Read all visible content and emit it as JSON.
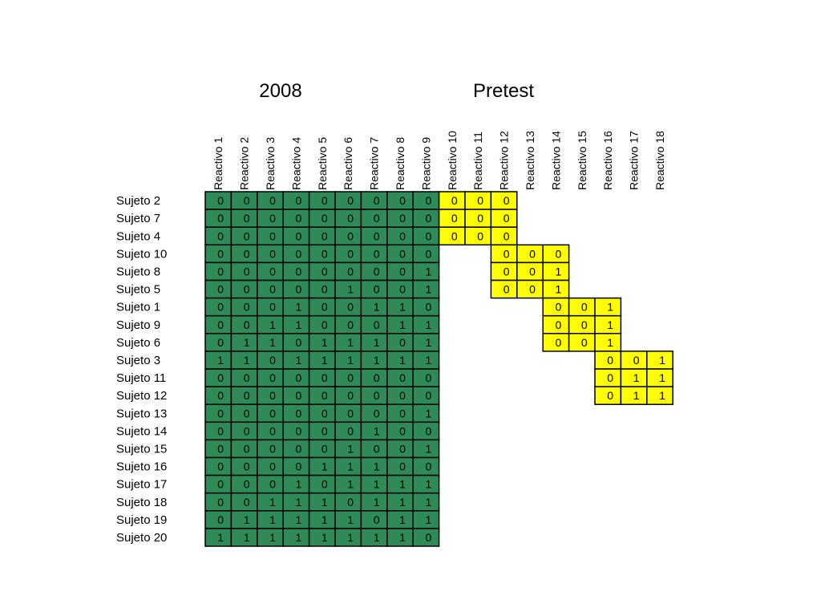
{
  "chart_data": {
    "type": "table",
    "titles": [
      "2008",
      "Pretest"
    ],
    "columns": [
      "Reactivo 1",
      "Reactivo 2",
      "Reactivo 3",
      "Reactivo 4",
      "Reactivo 5",
      "Reactivo 6",
      "Reactivo 7",
      "Reactivo 8",
      "Reactivo 9",
      "Reactivo 10",
      "Reactivo 11",
      "Reactivo 12",
      "Reactivo 13",
      "Reactivo 14",
      "Reactivo 15",
      "Reactivo 16",
      "Reactivo 17",
      "Reactivo 18"
    ],
    "colors": {
      "group_2008": "#2e8b57",
      "group_pretest": "#ffff00"
    },
    "rows": [
      {
        "subject": "Sujeto 2",
        "base": [
          0,
          0,
          0,
          0,
          0,
          0,
          0,
          0,
          0
        ],
        "pretest_items": [
          10,
          11,
          12
        ],
        "pretest": [
          0,
          0,
          0
        ]
      },
      {
        "subject": "Sujeto 7",
        "base": [
          0,
          0,
          0,
          0,
          0,
          0,
          0,
          0,
          0
        ],
        "pretest_items": [
          10,
          11,
          12
        ],
        "pretest": [
          0,
          0,
          0
        ]
      },
      {
        "subject": "Sujeto 4",
        "base": [
          0,
          0,
          0,
          0,
          0,
          0,
          0,
          0,
          0
        ],
        "pretest_items": [
          10,
          11,
          12
        ],
        "pretest": [
          0,
          0,
          0
        ]
      },
      {
        "subject": "Sujeto 10",
        "base": [
          0,
          0,
          0,
          0,
          0,
          0,
          0,
          0,
          0
        ],
        "pretest_items": [
          12,
          13,
          14
        ],
        "pretest": [
          0,
          0,
          0
        ]
      },
      {
        "subject": "Sujeto 8",
        "base": [
          0,
          0,
          0,
          0,
          0,
          0,
          0,
          0,
          1
        ],
        "pretest_items": [
          12,
          13,
          14
        ],
        "pretest": [
          0,
          0,
          1
        ]
      },
      {
        "subject": "Sujeto 5",
        "base": [
          0,
          0,
          0,
          0,
          0,
          1,
          0,
          0,
          1
        ],
        "pretest_items": [
          12,
          13,
          14
        ],
        "pretest": [
          0,
          0,
          1
        ]
      },
      {
        "subject": "Sujeto 1",
        "base": [
          0,
          0,
          0,
          1,
          0,
          0,
          1,
          1,
          0
        ],
        "pretest_items": [
          14,
          15,
          16
        ],
        "pretest": [
          0,
          0,
          1
        ]
      },
      {
        "subject": "Sujeto 9",
        "base": [
          0,
          0,
          1,
          1,
          0,
          0,
          0,
          1,
          1
        ],
        "pretest_items": [
          14,
          15,
          16
        ],
        "pretest": [
          0,
          0,
          1
        ]
      },
      {
        "subject": "Sujeto 6",
        "base": [
          0,
          1,
          1,
          0,
          1,
          1,
          1,
          0,
          1
        ],
        "pretest_items": [
          14,
          15,
          16
        ],
        "pretest": [
          0,
          0,
          1
        ]
      },
      {
        "subject": "Sujeto 3",
        "base": [
          1,
          1,
          0,
          1,
          1,
          1,
          1,
          1,
          1
        ],
        "pretest_items": [
          16,
          17,
          18
        ],
        "pretest": [
          0,
          0,
          1
        ]
      },
      {
        "subject": "Sujeto 11",
        "base": [
          0,
          0,
          0,
          0,
          0,
          0,
          0,
          0,
          0
        ],
        "pretest_items": [
          16,
          17,
          18
        ],
        "pretest": [
          0,
          1,
          1
        ]
      },
      {
        "subject": "Sujeto 12",
        "base": [
          0,
          0,
          0,
          0,
          0,
          0,
          0,
          0,
          0
        ],
        "pretest_items": [
          16,
          17,
          18
        ],
        "pretest": [
          0,
          1,
          1
        ]
      },
      {
        "subject": "Sujeto 13",
        "base": [
          0,
          0,
          0,
          0,
          0,
          0,
          0,
          0,
          1
        ],
        "pretest_items": [],
        "pretest": []
      },
      {
        "subject": "Sujeto 14",
        "base": [
          0,
          0,
          0,
          0,
          0,
          0,
          1,
          0,
          0
        ],
        "pretest_items": [],
        "pretest": []
      },
      {
        "subject": "Sujeto 15",
        "base": [
          0,
          0,
          0,
          0,
          0,
          1,
          0,
          0,
          1
        ],
        "pretest_items": [],
        "pretest": []
      },
      {
        "subject": "Sujeto 16",
        "base": [
          0,
          0,
          0,
          0,
          1,
          1,
          1,
          0,
          0
        ],
        "pretest_items": [],
        "pretest": []
      },
      {
        "subject": "Sujeto 17",
        "base": [
          0,
          0,
          0,
          1,
          0,
          1,
          1,
          1,
          1
        ],
        "pretest_items": [],
        "pretest": []
      },
      {
        "subject": "Sujeto 18",
        "base": [
          0,
          0,
          1,
          1,
          1,
          0,
          1,
          1,
          1
        ],
        "pretest_items": [],
        "pretest": []
      },
      {
        "subject": "Sujeto 19",
        "base": [
          0,
          1,
          1,
          1,
          1,
          1,
          0,
          1,
          1
        ],
        "pretest_items": [],
        "pretest": []
      },
      {
        "subject": "Sujeto 20",
        "base": [
          1,
          1,
          1,
          1,
          1,
          1,
          1,
          1,
          0
        ],
        "pretest_items": [],
        "pretest": []
      }
    ]
  }
}
